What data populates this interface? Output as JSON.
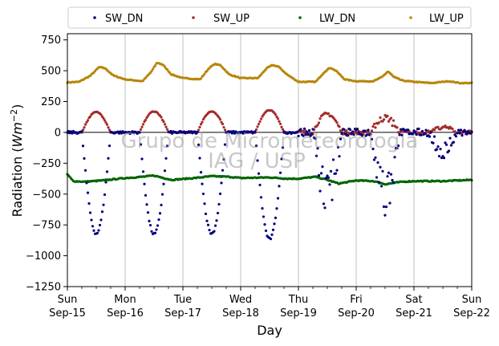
{
  "chart_data": {
    "type": "scatter",
    "title": "",
    "xlabel": "Day",
    "ylabel_prefix": "Radiation (",
    "ylabel_unit_base": "Wm",
    "ylabel_unit_exp": "−2",
    "ylabel_suffix": ")",
    "ylim": [
      -1250,
      800
    ],
    "xlim_days": [
      0,
      7
    ],
    "grid": "vertical major ticks",
    "legend_placement": "top, above plot",
    "watermark": [
      "Grupo de Micrometeorologia",
      "IAG / USP"
    ],
    "x_ticks": [
      {
        "day": "Sun",
        "date": "Sep-15"
      },
      {
        "day": "Mon",
        "date": "Sep-16"
      },
      {
        "day": "Tue",
        "date": "Sep-17"
      },
      {
        "day": "Wed",
        "date": "Sep-18"
      },
      {
        "day": "Thu",
        "date": "Sep-19"
      },
      {
        "day": "Fri",
        "date": "Sep-20"
      },
      {
        "day": "Sat",
        "date": "Sep-21"
      },
      {
        "day": "Sun",
        "date": "Sep-22"
      }
    ],
    "y_ticks": [
      "750",
      "500",
      "250",
      "0",
      "−250",
      "−500",
      "−750",
      "−1000",
      "−1250"
    ],
    "y_tick_values": [
      750,
      500,
      250,
      0,
      -250,
      -500,
      -750,
      -1000,
      -1250
    ],
    "series": [
      {
        "name": "SW_DN",
        "color": "#00007f",
        "daily_extreme": [
          -820,
          -825,
          -820,
          -865,
          -680,
          -720,
          -210
        ],
        "note": "negative (sign flipped) downward shortwave"
      },
      {
        "name": "SW_UP",
        "color": "#a52a2a",
        "daily_extreme": [
          165,
          170,
          170,
          180,
          150,
          150,
          50
        ]
      },
      {
        "name": "LW_DN",
        "color": "#006400",
        "points": [
          [
            0.0,
            -340
          ],
          [
            0.1,
            -395
          ],
          [
            0.3,
            -400
          ],
          [
            0.6,
            -390
          ],
          [
            1.0,
            -370
          ],
          [
            1.3,
            -360
          ],
          [
            1.5,
            -350
          ],
          [
            1.8,
            -385
          ],
          [
            2.2,
            -370
          ],
          [
            2.5,
            -355
          ],
          [
            2.8,
            -360
          ],
          [
            3.0,
            -370
          ],
          [
            3.5,
            -365
          ],
          [
            3.8,
            -375
          ],
          [
            4.0,
            -375
          ],
          [
            4.3,
            -360
          ],
          [
            4.5,
            -385
          ],
          [
            4.7,
            -415
          ],
          [
            5.0,
            -390
          ],
          [
            5.3,
            -395
          ],
          [
            5.5,
            -420
          ],
          [
            5.8,
            -400
          ],
          [
            6.0,
            -395
          ],
          [
            6.5,
            -395
          ],
          [
            7.0,
            -385
          ]
        ]
      },
      {
        "name": "LW_UP",
        "color": "#b8860b",
        "points": [
          [
            0.0,
            405
          ],
          [
            0.2,
            410
          ],
          [
            0.4,
            460
          ],
          [
            0.55,
            530
          ],
          [
            0.65,
            520
          ],
          [
            0.8,
            460
          ],
          [
            1.0,
            430
          ],
          [
            1.3,
            415
          ],
          [
            1.45,
            490
          ],
          [
            1.55,
            565
          ],
          [
            1.65,
            550
          ],
          [
            1.8,
            470
          ],
          [
            2.0,
            440
          ],
          [
            2.3,
            430
          ],
          [
            2.45,
            520
          ],
          [
            2.55,
            555
          ],
          [
            2.65,
            545
          ],
          [
            2.8,
            470
          ],
          [
            3.0,
            440
          ],
          [
            3.3,
            440
          ],
          [
            3.45,
            520
          ],
          [
            3.55,
            545
          ],
          [
            3.65,
            535
          ],
          [
            3.8,
            470
          ],
          [
            4.0,
            410
          ],
          [
            4.3,
            410
          ],
          [
            4.45,
            490
          ],
          [
            4.55,
            525
          ],
          [
            4.65,
            500
          ],
          [
            4.8,
            430
          ],
          [
            5.0,
            415
          ],
          [
            5.3,
            415
          ],
          [
            5.45,
            450
          ],
          [
            5.55,
            495
          ],
          [
            5.65,
            450
          ],
          [
            5.8,
            420
          ],
          [
            6.0,
            410
          ],
          [
            6.3,
            400
          ],
          [
            6.5,
            410
          ],
          [
            6.6,
            415
          ],
          [
            6.8,
            400
          ],
          [
            7.0,
            400
          ]
        ]
      }
    ]
  }
}
